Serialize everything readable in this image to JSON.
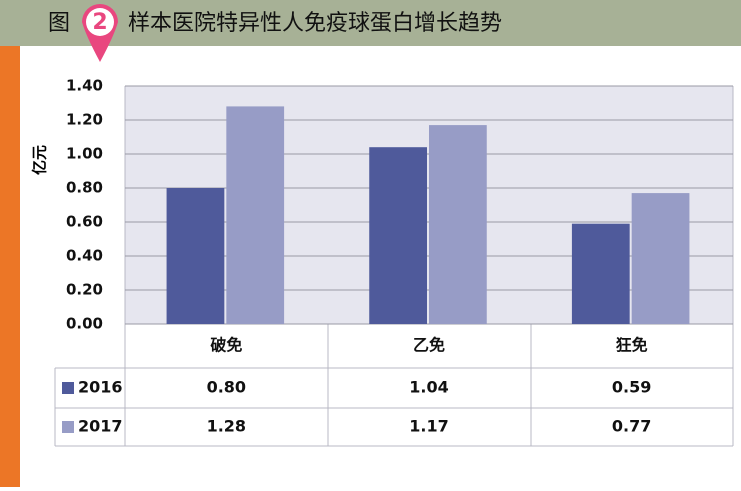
{
  "chart_data": {
    "type": "bar",
    "figure_label": "图",
    "figure_number": "2",
    "title": "样本医院特异性人免疫球蛋白增长趋势",
    "y_label": "亿元",
    "categories": [
      "破免",
      "乙免",
      "狂免"
    ],
    "series": [
      {
        "name": "2016",
        "color": "#4f5a9b",
        "values": [
          0.8,
          1.04,
          0.59
        ],
        "value_labels": [
          "0.80",
          "1.04",
          "0.59"
        ]
      },
      {
        "name": "2017",
        "color": "#979cc6",
        "values": [
          1.28,
          1.17,
          0.77
        ],
        "value_labels": [
          "1.28",
          "1.17",
          "0.77"
        ]
      }
    ],
    "ylim": [
      0,
      1.4
    ],
    "yticks": [
      {
        "value": 0,
        "label": "0.00"
      },
      {
        "value": 0.2,
        "label": "0.20"
      },
      {
        "value": 0.4,
        "label": "0.40"
      },
      {
        "value": 0.6,
        "label": "0.60"
      },
      {
        "value": 0.8,
        "label": "0.80"
      },
      {
        "value": 1.0,
        "label": "1.00"
      },
      {
        "value": 1.2,
        "label": "1.20"
      },
      {
        "value": 1.4,
        "label": "1.40"
      }
    ],
    "grid": true
  }
}
